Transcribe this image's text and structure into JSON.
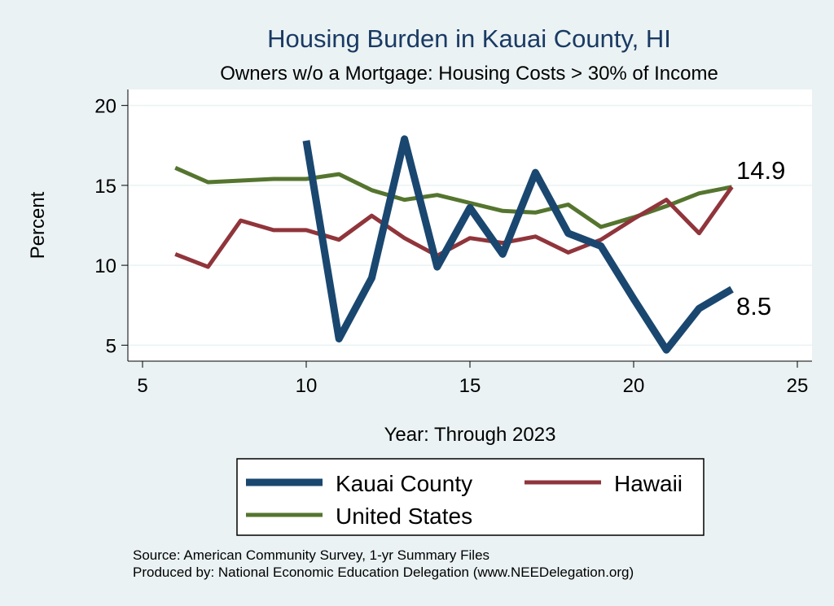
{
  "colors": {
    "background": "#eaf2f3",
    "plot_bg": "#ffffff",
    "grid": "#eaf2f3",
    "title": "#1a3a64",
    "kauai": "#1a476f",
    "hawaii": "#90353b",
    "us": "#55752f"
  },
  "chart_data": {
    "type": "line",
    "title": "Housing Burden in Kauai County, HI",
    "subtitle": "Owners w/o a Mortgage: Housing Costs > 30% of Income",
    "xlabel": "Year: Through 2023",
    "ylabel": "Percent",
    "xlim": [
      5,
      25
    ],
    "ylim": [
      4,
      21
    ],
    "xticks": [
      5,
      10,
      15,
      20,
      25
    ],
    "yticks": [
      5,
      10,
      15,
      20
    ],
    "grid": true,
    "series": [
      {
        "name": "Kauai County",
        "color": "#1a476f",
        "x": [
          10,
          11,
          12,
          13,
          14,
          15,
          16,
          17,
          18,
          19,
          20,
          21,
          22,
          23
        ],
        "y": [
          17.8,
          5.4,
          9.2,
          17.9,
          9.9,
          13.6,
          10.7,
          15.8,
          12.0,
          11.2,
          7.9,
          4.7,
          7.3,
          8.5
        ]
      },
      {
        "name": "Hawaii",
        "color": "#90353b",
        "x": [
          6,
          7,
          8,
          9,
          10,
          11,
          12,
          13,
          14,
          15,
          16,
          17,
          18,
          19,
          20,
          21,
          22,
          23
        ],
        "y": [
          10.7,
          9.9,
          12.8,
          12.2,
          12.2,
          11.6,
          13.1,
          11.7,
          10.6,
          11.7,
          11.4,
          11.8,
          10.8,
          11.6,
          12.9,
          14.1,
          12.0,
          14.9
        ]
      },
      {
        "name": "United States",
        "color": "#55752f",
        "x": [
          6,
          7,
          8,
          9,
          10,
          11,
          12,
          13,
          14,
          15,
          16,
          17,
          18,
          19,
          20,
          21,
          22,
          23
        ],
        "y": [
          16.1,
          15.2,
          15.3,
          15.4,
          15.4,
          15.7,
          14.7,
          14.1,
          14.4,
          13.9,
          13.4,
          13.3,
          13.8,
          12.4,
          13.0,
          13.7,
          14.5,
          14.9
        ]
      }
    ],
    "end_labels": [
      "14.9",
      "8.5"
    ],
    "legend_position": "bottom"
  },
  "legend": {
    "items": [
      "Kauai County",
      "Hawaii",
      "United States"
    ]
  },
  "notes": {
    "source": "Source: American Community Survey, 1-yr Summary Files",
    "produced": "Produced by: National Economic Education Delegation (www.NEEDelegation.org)"
  }
}
